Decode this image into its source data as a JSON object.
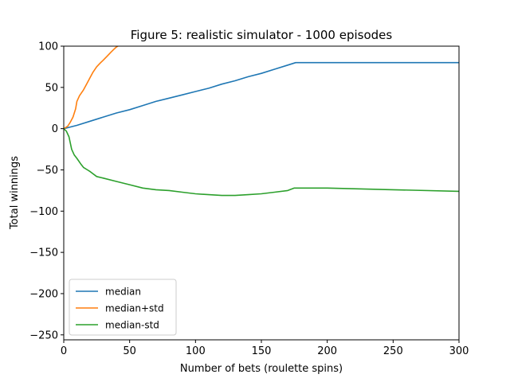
{
  "chart_data": {
    "type": "line",
    "title": "Figure 5: realistic simulator - 1000 episodes",
    "xlabel": "Number of bets (roulette spins)",
    "ylabel": "Total winnings",
    "xlim": [
      0,
      300
    ],
    "ylim": [
      -256,
      100
    ],
    "xticks": [
      0,
      50,
      100,
      150,
      200,
      250,
      300
    ],
    "yticks": [
      100,
      50,
      0,
      -50,
      -100,
      -150,
      -200,
      -250
    ],
    "xtick_labels": [
      "0",
      "50",
      "100",
      "150",
      "200",
      "250",
      "300"
    ],
    "ytick_labels": [
      "100",
      "50",
      "0",
      "−50",
      "−100",
      "−150",
      "−200",
      "−250"
    ],
    "grid": false,
    "legend_position": "lower-left",
    "series": [
      {
        "name": "median",
        "color": "#1f77b4",
        "x": [
          0,
          10,
          20,
          30,
          40,
          50,
          60,
          70,
          80,
          90,
          100,
          110,
          120,
          130,
          140,
          150,
          160,
          170,
          176,
          180,
          200,
          250,
          300
        ],
        "y": [
          0,
          4,
          9,
          14,
          19,
          23,
          28,
          33,
          37,
          41,
          45,
          49,
          54,
          58,
          63,
          67,
          72,
          77,
          80,
          80,
          80,
          80,
          80
        ]
      },
      {
        "name": "median+std",
        "color": "#ff7f0e",
        "x": [
          0,
          3,
          5,
          7,
          9,
          10,
          12,
          15,
          18,
          20,
          22,
          25,
          28,
          30,
          33,
          36,
          38,
          40,
          41
        ],
        "y": [
          0,
          3,
          8,
          14,
          24,
          33,
          40,
          47,
          56,
          62,
          68,
          75,
          80,
          83,
          88,
          93,
          96,
          99,
          100
        ]
      },
      {
        "name": "median-std",
        "color": "#2ca02c",
        "x": [
          0,
          2,
          4,
          6,
          8,
          10,
          13,
          15,
          18,
          20,
          25,
          30,
          40,
          50,
          60,
          70,
          80,
          90,
          100,
          110,
          120,
          130,
          140,
          150,
          160,
          170,
          175,
          180,
          200,
          250,
          300
        ],
        "y": [
          0,
          -3,
          -10,
          -25,
          -32,
          -36,
          -43,
          -47,
          -50,
          -52,
          -58,
          -60,
          -64,
          -68,
          -72,
          -74,
          -75,
          -77,
          -79,
          -80,
          -81,
          -81,
          -80,
          -79,
          -77,
          -75,
          -72,
          -72,
          -72,
          -74,
          -76
        ]
      }
    ]
  }
}
